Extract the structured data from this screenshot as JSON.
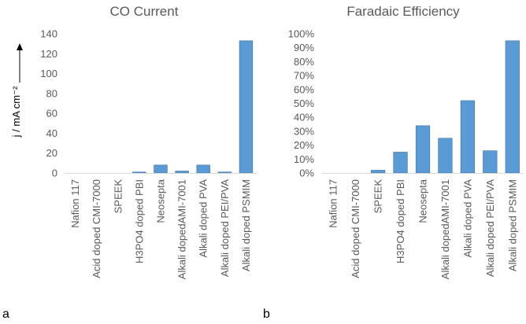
{
  "panel_labels": [
    "a",
    "b"
  ],
  "chart_data": [
    {
      "type": "bar",
      "title": "CO Current",
      "ylabel": "j / mA cm⁻²",
      "xlabel": "",
      "ylim": [
        0,
        140
      ],
      "yticks": [
        "0",
        "20",
        "40",
        "60",
        "80",
        "100",
        "120",
        "140"
      ],
      "grid": false,
      "color": "#5B9BD5",
      "categories": [
        "Nafion 117",
        "Acid doped CMI-7000",
        "SPEEK",
        "H3PO4 doped PBI",
        "Neosepta",
        "Alkali dopedAMI-7001",
        "Alkali doped PVA",
        "Alkali doped PEI/PVA",
        "Alkali doped PSMIM"
      ],
      "values": [
        0,
        0,
        0,
        1,
        8,
        2,
        8,
        1,
        133
      ]
    },
    {
      "type": "bar",
      "title": "Faradaic Efficiency",
      "ylabel": "",
      "xlabel": "",
      "ylim": [
        0,
        1.0
      ],
      "yticks": [
        "0%",
        "10%",
        "20%",
        "30%",
        "40%",
        "50%",
        "60%",
        "70%",
        "80%",
        "90%",
        "100%"
      ],
      "grid": false,
      "color": "#5B9BD5",
      "categories": [
        "Nafion 117",
        "Acid doped CMI-7000",
        "SPEEK",
        "H3PO4 doped PBI",
        "Neosepta",
        "Alkali dopedAMI-7001",
        "Alkali doped PVA",
        "Alkali doped PEI/PVA",
        "Alkali doped PSMIM"
      ],
      "values": [
        0,
        0,
        0.02,
        0.15,
        0.34,
        0.25,
        0.52,
        0.16,
        0.95
      ]
    }
  ]
}
